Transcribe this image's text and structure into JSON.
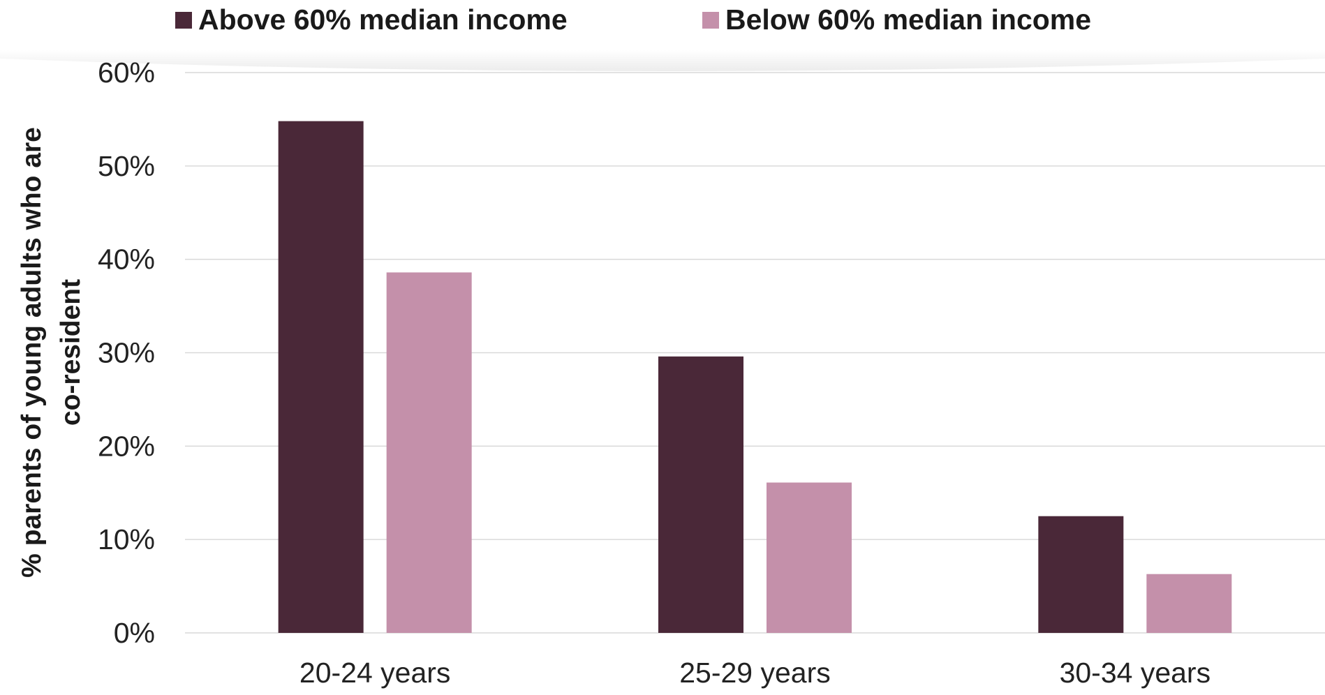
{
  "chart_data": {
    "type": "bar",
    "categories": [
      "20-24 years",
      "25-29 years",
      "30-34 years"
    ],
    "series": [
      {
        "name": "Above 60% median income",
        "color": "#4a2838",
        "values": [
          54.8,
          29.6,
          12.5
        ]
      },
      {
        "name": "Below 60% median income",
        "color": "#c490aa",
        "values": [
          38.6,
          16.1,
          6.3
        ]
      }
    ],
    "ylabel_lines": [
      "% parents of young adults who are",
      "co-resident"
    ],
    "yticks": [
      "0%",
      "10%",
      "20%",
      "30%",
      "40%",
      "50%",
      "60%"
    ],
    "ylim": [
      0,
      60
    ],
    "grid": true,
    "legend_position": "top"
  }
}
